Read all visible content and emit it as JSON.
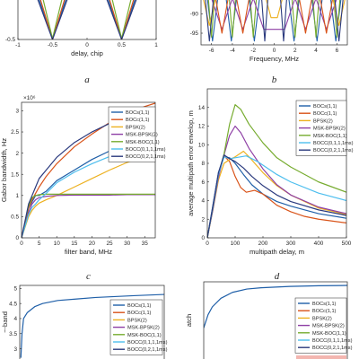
{
  "colors": {
    "BOCs(1,1)": "#1f5fa8",
    "BOCc(1,1)": "#d95319",
    "BPSK(2)": "#edb120",
    "MSK-BPSK(2)": "#8e3fa5",
    "MSK-BOC(1,1)": "#77ac30",
    "BOCC(0,1,1,1ms)": "#4dbeee",
    "BOCC(0,2,1,1ms)": "#2b3a7e"
  },
  "legend_entries": [
    "BOCs(1,1)",
    "BOCc(1,1)",
    "BPSK(2)",
    "MSK-BPSK(2)",
    "MSK-BOC(1,1)",
    "BOCC(0,1,1,1ms)",
    "BOCC(0,2,1,1ms)"
  ],
  "chart_data": [
    {
      "id": "a",
      "type": "line",
      "panel_label": "a",
      "xlabel": "delay, chip",
      "ylabel": "",
      "xlim": [
        -1,
        1
      ],
      "ylim": [
        -0.5,
        0.4
      ],
      "xticks": [
        "-1",
        "-0.5",
        "0",
        "0.5",
        "1"
      ],
      "yticks": [
        "-0.5"
      ],
      "series": [
        {
          "key": "BOCs(1,1)",
          "x": [
            -0.7,
            -0.5,
            -0.3
          ],
          "y": [
            0.4,
            -0.5,
            0.4
          ]
        },
        {
          "key": "BOCs(1,1)",
          "x": [
            0.3,
            0.5,
            0.7
          ],
          "y": [
            0.4,
            -0.5,
            0.4
          ]
        },
        {
          "key": "BOCc(1,1)",
          "x": [
            -0.68,
            -0.5,
            -0.32
          ],
          "y": [
            0.4,
            -0.5,
            0.4
          ]
        },
        {
          "key": "BOCc(1,1)",
          "x": [
            0.32,
            0.5,
            0.68
          ],
          "y": [
            0.4,
            -0.5,
            0.4
          ]
        },
        {
          "key": "MSK-BOC(1,1)",
          "x": [
            -0.64,
            -0.5,
            -0.36
          ],
          "y": [
            0.4,
            -0.48,
            0.4
          ]
        },
        {
          "key": "MSK-BOC(1,1)",
          "x": [
            0.36,
            0.5,
            0.64
          ],
          "y": [
            0.4,
            -0.48,
            0.4
          ]
        },
        {
          "key": "BOCC(0,2,1,1ms)",
          "x": [
            -0.72,
            -0.5,
            -0.28
          ],
          "y": [
            0.4,
            -0.5,
            0.4
          ]
        },
        {
          "key": "BOCC(0,2,1,1ms)",
          "x": [
            0.28,
            0.5,
            0.72
          ],
          "y": [
            0.4,
            -0.5,
            0.4
          ]
        }
      ]
    },
    {
      "id": "b",
      "type": "line",
      "panel_label": "b",
      "xlabel": "Frequency, MHz",
      "ylabel": "",
      "xlim": [
        -7,
        7
      ],
      "ylim": [
        -98,
        -86
      ],
      "xticks": [
        "-6",
        "-4",
        "-2",
        "0",
        "2",
        "4",
        "6"
      ],
      "yticks": [
        "-90",
        "-95"
      ],
      "series": [
        {
          "key": "BOCs(1,1)",
          "x": [
            -6.4,
            -5.9,
            -5.4,
            -4.6,
            -4.1,
            -3.6,
            -2.4,
            -1.9,
            -1.4,
            1.4,
            1.9,
            2.4,
            3.6,
            4.1,
            4.6,
            5.4,
            5.9,
            6.4
          ],
          "y": [
            -86,
            -97,
            -86,
            -86,
            -97,
            -86,
            -86,
            -97,
            -86,
            -86,
            -97,
            -86,
            -86,
            -97,
            -86,
            -86,
            -97,
            -86
          ]
        },
        {
          "key": "MSK-BOC(1,1)",
          "x": [
            -6.3,
            -6.0,
            -5.7,
            -4.3,
            -4.0,
            -3.7,
            -2.3,
            -2.0,
            -1.7,
            1.7,
            2.0,
            2.3,
            3.7,
            4.0,
            4.3,
            5.7,
            6.0,
            6.3
          ],
          "y": [
            -86,
            -96,
            -86,
            -86,
            -96,
            -86,
            -86,
            -96,
            -86,
            -86,
            -96,
            -86,
            -86,
            -96,
            -86,
            -86,
            -96,
            -86
          ]
        },
        {
          "key": "MSK-BPSK(2)",
          "x": [
            -6.0,
            -5.0,
            -4.0,
            -3.0,
            -2.0,
            -1.0,
            1.0,
            2.0,
            3.0,
            4.0,
            5.0,
            6.0
          ],
          "y": [
            -86,
            -94,
            -86,
            -94,
            -86,
            -94,
            -94,
            -86,
            -94,
            -86,
            -94,
            -86
          ]
        },
        {
          "key": "BOCc(1,1)",
          "x": [
            -5.6,
            -5.0,
            -4.4,
            -3.6,
            -3.0,
            -2.4,
            2.4,
            3.0,
            3.6,
            4.4,
            5.0,
            5.6
          ],
          "y": [
            -86,
            -95,
            -86,
            -86,
            -95,
            -86,
            -86,
            -95,
            -86,
            -86,
            -95,
            -86
          ]
        },
        {
          "key": "BPSK(2)",
          "x": [
            -6.8,
            -6.2,
            -5.6,
            -0.8,
            -0.3,
            0.3,
            0.8,
            5.6,
            6.2,
            6.8
          ],
          "y": [
            -86,
            -93,
            -86,
            -86,
            -91,
            -91,
            -86,
            -86,
            -93,
            -86
          ]
        },
        {
          "key": "BOCC(0,2,1,1ms)",
          "x": [
            -6.6,
            -6.2,
            -5.8,
            -1.2,
            -0.9,
            -0.6,
            0.6,
            0.9,
            1.2,
            5.8,
            6.2,
            6.6
          ],
          "y": [
            -86,
            -97,
            -86,
            -86,
            -97,
            -86,
            -86,
            -97,
            -86,
            -86,
            -97,
            -86
          ]
        }
      ]
    },
    {
      "id": "c",
      "type": "line",
      "panel_label": "c",
      "xlabel": "filter band, MHz",
      "ylabel": "Gabor bandwidth, Hz",
      "exponent_label": "×10⁶",
      "xlim": [
        0,
        38
      ],
      "ylim": [
        0,
        3.2
      ],
      "xticks": [
        "0",
        "5",
        "10",
        "15",
        "20",
        "25",
        "30",
        "35"
      ],
      "yticks": [
        "0",
        "0.5",
        "1",
        "1.5",
        "2",
        "2.5",
        "3"
      ],
      "series": [
        {
          "key": "BOCs(1,1)",
          "x": [
            0,
            2,
            3,
            4,
            5,
            7,
            10,
            15,
            20,
            25,
            30,
            35,
            38
          ],
          "y": [
            0,
            0.7,
            0.85,
            1.0,
            1.0,
            1.1,
            1.35,
            1.6,
            1.85,
            2.05,
            2.2,
            2.35,
            2.4
          ]
        },
        {
          "key": "BOCc(1,1)",
          "x": [
            0,
            2,
            3,
            4,
            5,
            7,
            10,
            15,
            20,
            25,
            30,
            35,
            38
          ],
          "y": [
            0,
            0.7,
            0.9,
            1.05,
            1.2,
            1.45,
            1.75,
            2.15,
            2.45,
            2.72,
            2.93,
            3.1,
            3.18
          ]
        },
        {
          "key": "BPSK(2)",
          "x": [
            0,
            2,
            3,
            4,
            5,
            7,
            10,
            15,
            20,
            25,
            30,
            35,
            38
          ],
          "y": [
            0,
            0.5,
            0.65,
            0.75,
            0.82,
            0.9,
            1.0,
            1.2,
            1.4,
            1.6,
            1.78,
            1.93,
            2.0
          ]
        },
        {
          "key": "MSK-BPSK(2)",
          "x": [
            0,
            2,
            3,
            4,
            5,
            7,
            10,
            15,
            20,
            25,
            30,
            35,
            38
          ],
          "y": [
            0,
            0.6,
            0.8,
            0.9,
            0.95,
            0.98,
            1.0,
            1.01,
            1.01,
            1.01,
            1.02,
            1.02,
            1.02
          ]
        },
        {
          "key": "MSK-BOC(1,1)",
          "x": [
            0,
            2,
            3,
            4,
            5,
            7,
            10,
            15,
            20,
            25,
            30,
            35,
            38
          ],
          "y": [
            0,
            0.75,
            0.95,
            1.0,
            1.02,
            1.03,
            1.03,
            1.03,
            1.03,
            1.03,
            1.03,
            1.03,
            1.03
          ]
        },
        {
          "key": "BOCC(0,1,1,1ms)",
          "x": [
            0,
            2,
            3,
            4,
            5,
            7,
            10,
            15,
            20,
            25,
            30,
            35,
            38
          ],
          "y": [
            0,
            0.55,
            0.72,
            0.8,
            0.9,
            1.05,
            1.3,
            1.55,
            1.75,
            1.92,
            2.05,
            2.18,
            2.22
          ]
        },
        {
          "key": "BOCC(0,2,1,1ms)",
          "x": [
            0,
            2,
            3,
            4,
            5,
            7,
            10,
            15,
            20,
            25,
            30,
            35,
            38
          ],
          "y": [
            0,
            0.8,
            1.0,
            1.2,
            1.4,
            1.6,
            1.9,
            2.25,
            2.5,
            2.7,
            2.87,
            3.0,
            3.08
          ]
        }
      ]
    },
    {
      "id": "d",
      "type": "line",
      "panel_label": "d",
      "xlabel": "multipath delay, m",
      "ylabel": "average multipath error envelop, m",
      "xlim": [
        0,
        500
      ],
      "ylim": [
        0,
        16
      ],
      "xticks": [
        "0",
        "100",
        "200",
        "300",
        "400",
        "500"
      ],
      "yticks": [
        "0",
        "2",
        "4",
        "6",
        "8",
        "10",
        "12",
        "14"
      ],
      "legend_position": "top-right",
      "series": [
        {
          "key": "BOCs(1,1)",
          "x": [
            0,
            20,
            40,
            60,
            80,
            100,
            130,
            160,
            200,
            250,
            300,
            400,
            500
          ],
          "y": [
            0,
            3.5,
            7.0,
            8.7,
            8.6,
            8.0,
            6.8,
            5.7,
            4.7,
            3.9,
            3.4,
            2.6,
            2.1
          ]
        },
        {
          "key": "BOCc(1,1)",
          "x": [
            0,
            20,
            40,
            60,
            80,
            100,
            120,
            140,
            170,
            200,
            250,
            300,
            350,
            400,
            500
          ],
          "y": [
            0,
            3.2,
            6.8,
            8.8,
            8.2,
            6.6,
            5.4,
            4.9,
            5.1,
            4.7,
            3.5,
            2.8,
            2.3,
            2.0,
            1.6
          ]
        },
        {
          "key": "BPSK(2)",
          "x": [
            0,
            20,
            40,
            60,
            80,
            100,
            130,
            150,
            200,
            250,
            300,
            400,
            500
          ],
          "y": [
            0,
            3.0,
            6.2,
            8.0,
            8.4,
            8.7,
            9.3,
            8.7,
            7.0,
            5.6,
            4.6,
            3.2,
            2.5
          ]
        },
        {
          "key": "MSK-BPSK(2)",
          "x": [
            0,
            20,
            40,
            60,
            80,
            100,
            120,
            150,
            200,
            250,
            300,
            400,
            500
          ],
          "y": [
            0,
            3.0,
            6.5,
            8.9,
            11.0,
            12.0,
            11.3,
            9.6,
            7.4,
            5.7,
            4.6,
            3.3,
            2.6
          ]
        },
        {
          "key": "MSK-BOC(1,1)",
          "x": [
            0,
            20,
            40,
            60,
            80,
            100,
            120,
            150,
            200,
            250,
            300,
            400,
            500
          ],
          "y": [
            0,
            3.2,
            6.8,
            9.0,
            12.2,
            14.3,
            13.8,
            12.2,
            10.2,
            8.6,
            7.6,
            6.0,
            4.9
          ]
        },
        {
          "key": "BOCC(0,1,1,1ms)",
          "x": [
            0,
            20,
            40,
            60,
            80,
            100,
            140,
            180,
            250,
            300,
            400,
            500
          ],
          "y": [
            0,
            3.3,
            6.8,
            8.7,
            8.5,
            8.6,
            8.8,
            8.2,
            6.8,
            6.0,
            4.8,
            4.0
          ]
        },
        {
          "key": "BOCC(0,2,1,1ms)",
          "x": [
            0,
            20,
            40,
            60,
            80,
            100,
            130,
            160,
            200,
            250,
            300,
            400,
            500
          ],
          "y": [
            0,
            3.4,
            7.0,
            8.9,
            8.5,
            8.2,
            7.5,
            6.6,
            5.6,
            4.6,
            3.9,
            3.0,
            2.4
          ]
        }
      ]
    },
    {
      "id": "e",
      "type": "line",
      "xlabel": "",
      "ylabel": "~-band",
      "xlim": [
        0,
        38
      ],
      "ylim": [
        2.6,
        5.1
      ],
      "xticks": [],
      "yticks": [
        "5",
        "4.5",
        "4",
        "3.5",
        "3"
      ],
      "legend_position": "center-right",
      "series": [
        {
          "key": "BOCs(1,1)",
          "x": [
            0.3,
            0.6,
            1,
            2,
            4,
            6,
            10,
            15,
            20,
            25,
            30,
            38
          ],
          "y": [
            2.7,
            3.5,
            4.0,
            4.2,
            4.4,
            4.5,
            4.6,
            4.65,
            4.7,
            4.73,
            4.76,
            4.8
          ]
        }
      ]
    },
    {
      "id": "f",
      "type": "line",
      "xlabel": "",
      "ylabel": "atch",
      "xlim": [
        0,
        500
      ],
      "ylim": [
        -2,
        10
      ],
      "xticks": [],
      "yticks": [],
      "legend_position": "top-right",
      "series": [
        {
          "key": "BOCs(1,1)",
          "x": [
            0,
            15,
            30,
            60,
            100,
            150,
            200,
            300,
            400,
            500
          ],
          "y": [
            3.0,
            5.0,
            6.2,
            7.5,
            8.4,
            8.9,
            9.1,
            9.3,
            9.4,
            9.45
          ]
        }
      ]
    }
  ]
}
